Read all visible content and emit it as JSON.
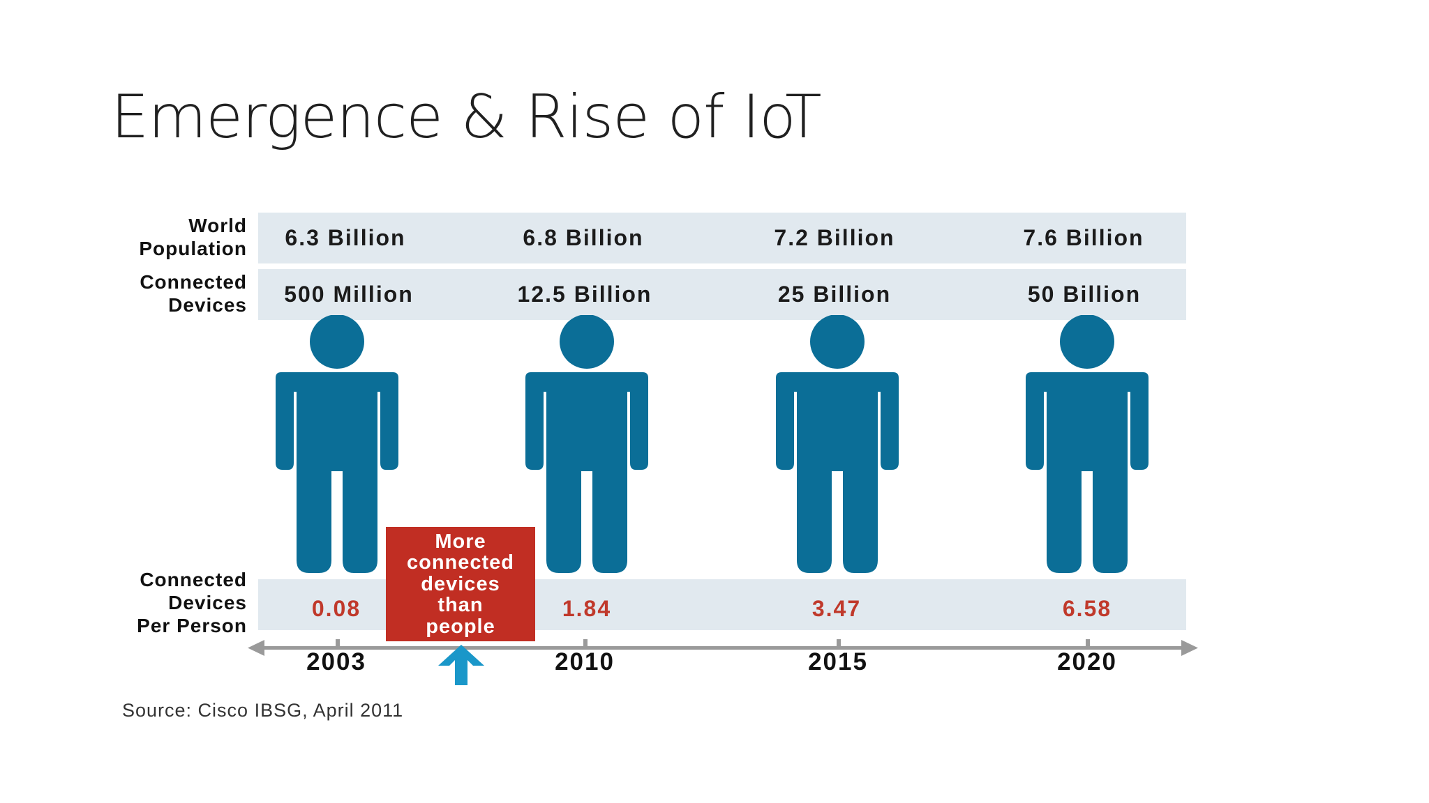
{
  "title": "Emergence & Rise of IoT",
  "row_labels": {
    "population": "World\nPopulation",
    "devices": "Connected\nDevices",
    "per_person": "Connected\nDevices\nPer Person"
  },
  "columns": [
    {
      "year": "2003",
      "population": "6.3 Billion",
      "devices": "500 Million",
      "per_person": "0.08"
    },
    {
      "year": "2010",
      "population": "6.8 Billion",
      "devices": "12.5 Billion",
      "per_person": "1.84"
    },
    {
      "year": "2015",
      "population": "7.2 Billion",
      "devices": "25 Billion",
      "per_person": "3.47"
    },
    {
      "year": "2020",
      "population": "7.6 Billion",
      "devices": "50 Billion",
      "per_person": "6.58"
    }
  ],
  "callout": "More\nconnected\ndevices\nthan\npeople",
  "source": "Source: Cisco IBSG, April 2011",
  "colors": {
    "person": "#0b6e97",
    "band": "#e1e9ef",
    "callout": "#c12e23",
    "value_red": "#c0392b",
    "arrow": "#1a97c9",
    "axis": "#9a9a9a"
  },
  "icons": {
    "person": "person-icon",
    "arrow": "up-arrow-icon"
  }
}
